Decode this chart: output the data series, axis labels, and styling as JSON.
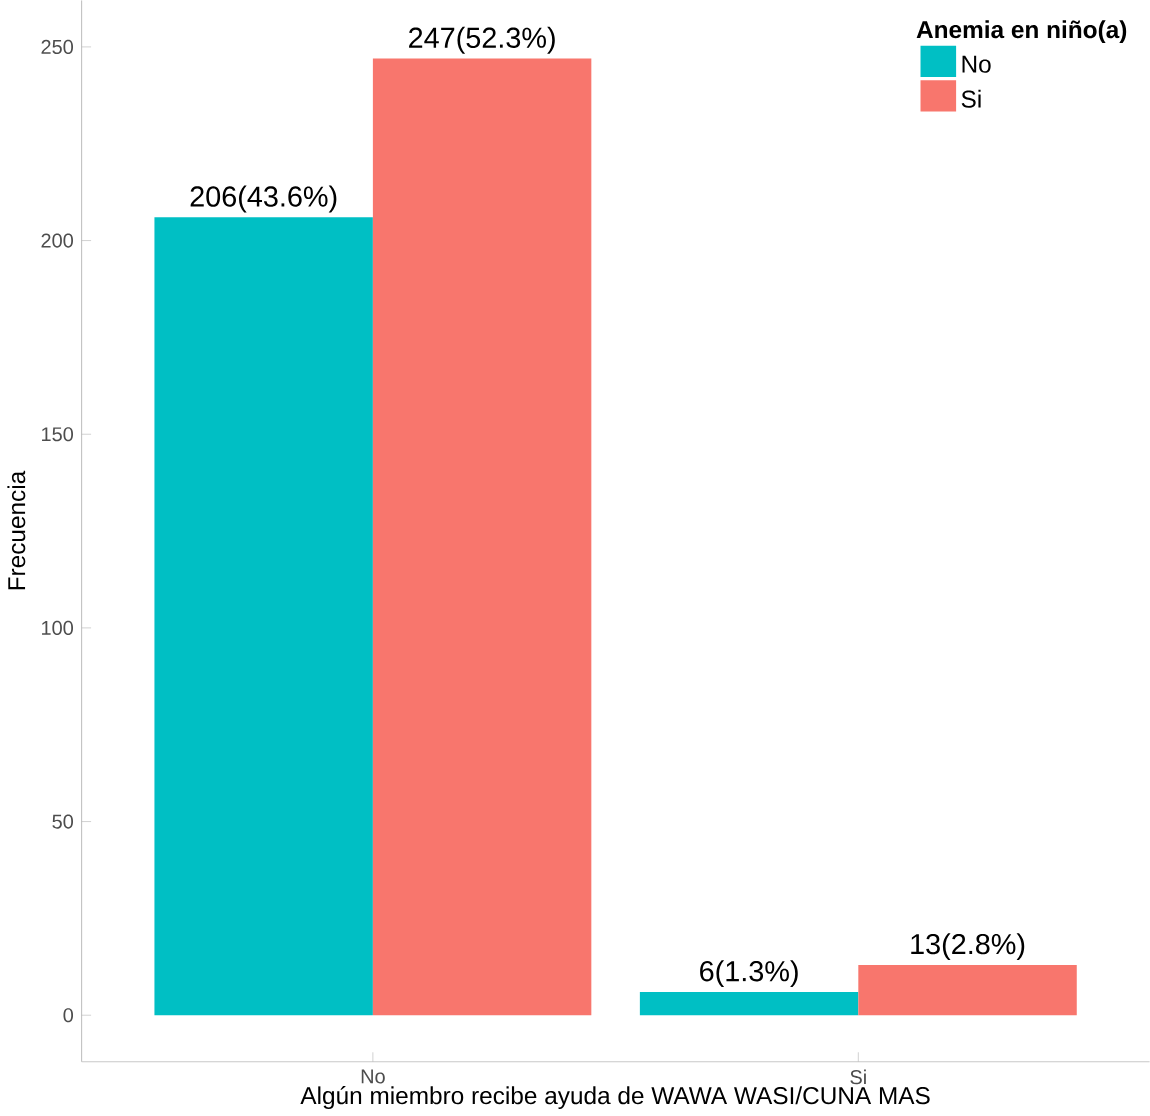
{
  "chart_data": {
    "type": "bar",
    "xlabel": "Algún miembro recibe ayuda de WAWA WASI/CUNA MAS",
    "ylabel": "Frecuencia",
    "legend_title": "Anemia en niño(a)",
    "categories": [
      "No",
      "Si"
    ],
    "series": [
      {
        "name": "No",
        "color": "#00bfc4",
        "values": [
          206,
          6
        ],
        "value_labels": [
          "206(43.6%)",
          "6(1.3%)"
        ]
      },
      {
        "name": "Si",
        "color": "#f8766d",
        "values": [
          247,
          13
        ],
        "value_labels": [
          "247(52.3%)",
          "13(2.8%)"
        ]
      }
    ],
    "ylim": [
      -12,
      262
    ],
    "yticks": [
      0,
      50,
      100,
      150,
      200,
      250
    ],
    "grid": false,
    "legend": "top right"
  }
}
